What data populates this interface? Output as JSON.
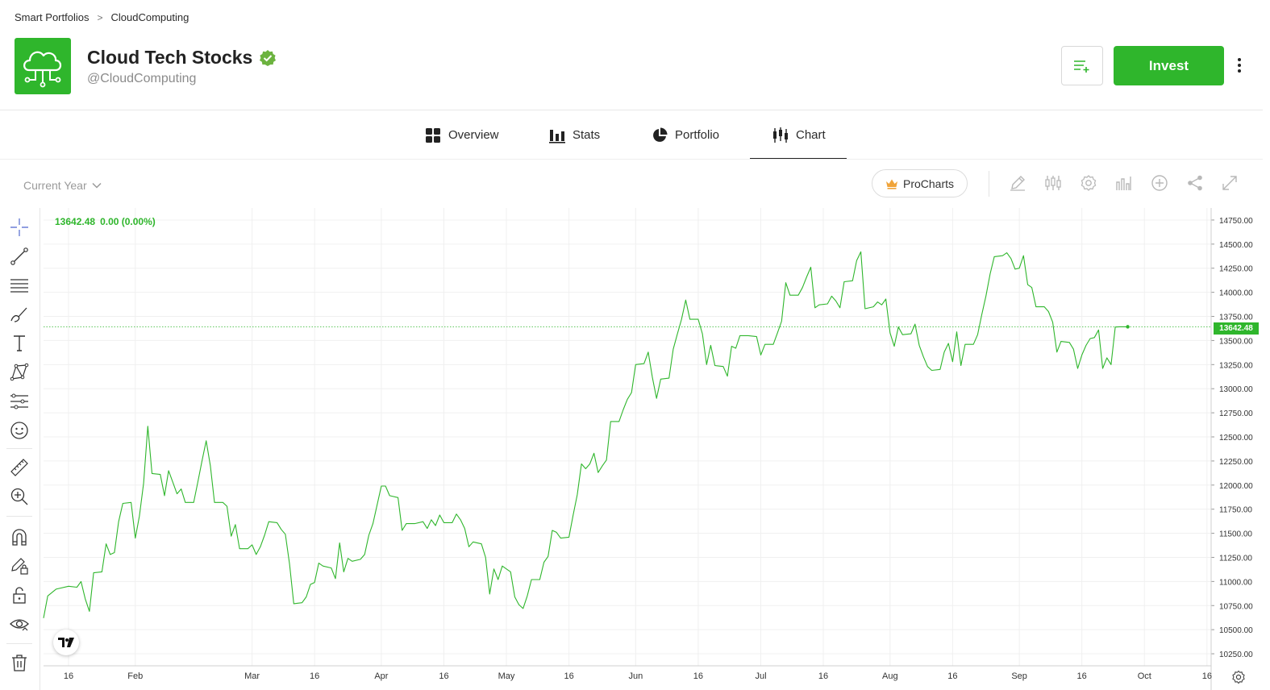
{
  "breadcrumb": {
    "parent": "Smart Portfolios",
    "separator": ">",
    "current": "CloudComputing"
  },
  "header": {
    "title": "Cloud Tech Stocks",
    "handle": "@CloudComputing",
    "invest_label": "Invest",
    "brand_color": "#2fb62c"
  },
  "tabs": [
    {
      "label": "Overview",
      "icon": "grid-icon"
    },
    {
      "label": "Stats",
      "icon": "bar-chart-icon"
    },
    {
      "label": "Portfolio",
      "icon": "pie-chart-icon"
    },
    {
      "label": "Chart",
      "icon": "candlestick-icon",
      "active": true
    }
  ],
  "toolbar": {
    "range_label": "Current Year",
    "procharts_label": "ProCharts",
    "icons": [
      "pencil-icon",
      "candles-icon",
      "settings-icon",
      "indicators-icon",
      "add-icon",
      "share-icon",
      "fullscreen-icon"
    ]
  },
  "left_tools": [
    "crosshair-icon",
    "trendline-icon",
    "horizontal-lines-icon",
    "brush-icon",
    "text-icon",
    "pattern-icon",
    "fib-icon",
    "emoji-icon",
    "ruler-icon",
    "zoom-in-icon",
    "magnet-icon",
    "lock-drawing-icon",
    "unlock-icon",
    "eye-icon",
    "trash-icon"
  ],
  "legend": {
    "last": "13642.48",
    "change": "0.00 (0.00%)"
  },
  "last_price_badge": "13642.48",
  "chart_data": {
    "type": "line",
    "title": "",
    "xlabel": "",
    "ylabel": "",
    "ylim": [
      10125,
      14875
    ],
    "y_ticks": [
      "14750.00",
      "14500.00",
      "14250.00",
      "14000.00",
      "13750.00",
      "13500.00",
      "13250.00",
      "13000.00",
      "12750.00",
      "12500.00",
      "12250.00",
      "12000.00",
      "11750.00",
      "11500.00",
      "11250.00",
      "11000.00",
      "10750.00",
      "10500.00",
      "10250.00"
    ],
    "x_ticks": [
      {
        "label": "16",
        "x": "2023-01-16"
      },
      {
        "label": "Feb",
        "x": "2023-02-01"
      },
      {
        "label": "Mar",
        "x": "2023-03-01"
      },
      {
        "label": "16",
        "x": "2023-03-16"
      },
      {
        "label": "Apr",
        "x": "2023-04-01"
      },
      {
        "label": "16",
        "x": "2023-04-16"
      },
      {
        "label": "May",
        "x": "2023-05-01"
      },
      {
        "label": "16",
        "x": "2023-05-16"
      },
      {
        "label": "Jun",
        "x": "2023-06-01"
      },
      {
        "label": "16",
        "x": "2023-06-16"
      },
      {
        "label": "Jul",
        "x": "2023-07-01"
      },
      {
        "label": "16",
        "x": "2023-07-16"
      },
      {
        "label": "Aug",
        "x": "2023-08-01"
      },
      {
        "label": "16",
        "x": "2023-08-16"
      },
      {
        "label": "Sep",
        "x": "2023-09-01"
      },
      {
        "label": "16",
        "x": "2023-09-16"
      },
      {
        "label": "Oct",
        "x": "2023-10-01"
      },
      {
        "label": "16",
        "x": "2023-10-16"
      }
    ],
    "x_start": "2023-01-10",
    "x_end": "2023-10-17",
    "series": [
      {
        "color": "#2fb62c",
        "points": [
          [
            "2023-01-10",
            10620
          ],
          [
            "2023-01-11",
            10850
          ],
          [
            "2023-01-13",
            10920
          ],
          [
            "2023-01-16",
            10950
          ],
          [
            "2023-01-18",
            10940
          ],
          [
            "2023-01-19",
            11000
          ],
          [
            "2023-01-20",
            10820
          ],
          [
            "2023-01-21",
            10690
          ],
          [
            "2023-01-22",
            11090
          ],
          [
            "2023-01-24",
            11100
          ],
          [
            "2023-01-25",
            11390
          ],
          [
            "2023-01-26",
            11280
          ],
          [
            "2023-01-27",
            11300
          ],
          [
            "2023-01-28",
            11620
          ],
          [
            "2023-01-29",
            11810
          ],
          [
            "2023-01-31",
            11820
          ],
          [
            "2023-02-01",
            11450
          ],
          [
            "2023-02-02",
            11680
          ],
          [
            "2023-02-03",
            12020
          ],
          [
            "2023-02-04",
            12610
          ],
          [
            "2023-02-05",
            12120
          ],
          [
            "2023-02-07",
            12110
          ],
          [
            "2023-02-08",
            11890
          ],
          [
            "2023-02-09",
            12150
          ],
          [
            "2023-02-10",
            12030
          ],
          [
            "2023-02-11",
            11910
          ],
          [
            "2023-02-12",
            11960
          ],
          [
            "2023-02-13",
            11820
          ],
          [
            "2023-02-15",
            11820
          ],
          [
            "2023-02-16",
            12030
          ],
          [
            "2023-02-17",
            12250
          ],
          [
            "2023-02-18",
            12460
          ],
          [
            "2023-02-19",
            12200
          ],
          [
            "2023-02-20",
            11820
          ],
          [
            "2023-02-22",
            11820
          ],
          [
            "2023-02-23",
            11780
          ],
          [
            "2023-02-24",
            11470
          ],
          [
            "2023-02-25",
            11590
          ],
          [
            "2023-02-26",
            11340
          ],
          [
            "2023-02-28",
            11340
          ],
          [
            "2023-03-01",
            11380
          ],
          [
            "2023-03-02",
            11280
          ],
          [
            "2023-03-03",
            11360
          ],
          [
            "2023-03-04",
            11480
          ],
          [
            "2023-03-05",
            11620
          ],
          [
            "2023-03-07",
            11610
          ],
          [
            "2023-03-08",
            11540
          ],
          [
            "2023-03-09",
            11490
          ],
          [
            "2023-03-10",
            11180
          ],
          [
            "2023-03-11",
            10770
          ],
          [
            "2023-03-13",
            10780
          ],
          [
            "2023-03-14",
            10840
          ],
          [
            "2023-03-15",
            10970
          ],
          [
            "2023-03-16",
            10990
          ],
          [
            "2023-03-17",
            11190
          ],
          [
            "2023-03-18",
            11160
          ],
          [
            "2023-03-20",
            11140
          ],
          [
            "2023-03-21",
            11030
          ],
          [
            "2023-03-22",
            11400
          ],
          [
            "2023-03-23",
            11100
          ],
          [
            "2023-03-24",
            11240
          ],
          [
            "2023-03-25",
            11210
          ],
          [
            "2023-03-27",
            11230
          ],
          [
            "2023-03-28",
            11280
          ],
          [
            "2023-03-29",
            11480
          ],
          [
            "2023-03-30",
            11600
          ],
          [
            "2023-04-01",
            11990
          ],
          [
            "2023-04-02",
            11990
          ],
          [
            "2023-04-03",
            11890
          ],
          [
            "2023-04-05",
            11870
          ],
          [
            "2023-04-06",
            11530
          ],
          [
            "2023-04-07",
            11600
          ],
          [
            "2023-04-09",
            11600
          ],
          [
            "2023-04-11",
            11620
          ],
          [
            "2023-04-12",
            11550
          ],
          [
            "2023-04-13",
            11640
          ],
          [
            "2023-04-14",
            11580
          ],
          [
            "2023-04-15",
            11690
          ],
          [
            "2023-04-16",
            11610
          ],
          [
            "2023-04-18",
            11610
          ],
          [
            "2023-04-19",
            11700
          ],
          [
            "2023-04-20",
            11640
          ],
          [
            "2023-04-21",
            11550
          ],
          [
            "2023-04-22",
            11360
          ],
          [
            "2023-04-23",
            11410
          ],
          [
            "2023-04-25",
            11390
          ],
          [
            "2023-04-26",
            11250
          ],
          [
            "2023-04-27",
            10870
          ],
          [
            "2023-04-28",
            11130
          ],
          [
            "2023-04-29",
            11020
          ],
          [
            "2023-04-30",
            11160
          ],
          [
            "2023-05-01",
            11130
          ],
          [
            "2023-05-02",
            11100
          ],
          [
            "2023-05-03",
            10840
          ],
          [
            "2023-05-04",
            10760
          ],
          [
            "2023-05-05",
            10720
          ],
          [
            "2023-05-06",
            10850
          ],
          [
            "2023-05-07",
            11020
          ],
          [
            "2023-05-09",
            11020
          ],
          [
            "2023-05-10",
            11200
          ],
          [
            "2023-05-11",
            11260
          ],
          [
            "2023-05-12",
            11530
          ],
          [
            "2023-05-13",
            11510
          ],
          [
            "2023-05-14",
            11450
          ],
          [
            "2023-05-16",
            11460
          ],
          [
            "2023-05-17",
            11690
          ],
          [
            "2023-05-18",
            11900
          ],
          [
            "2023-05-19",
            12220
          ],
          [
            "2023-05-20",
            12170
          ],
          [
            "2023-05-21",
            12220
          ],
          [
            "2023-05-22",
            12330
          ],
          [
            "2023-05-23",
            12130
          ],
          [
            "2023-05-24",
            12200
          ],
          [
            "2023-05-25",
            12260
          ],
          [
            "2023-05-26",
            12660
          ],
          [
            "2023-05-28",
            12660
          ],
          [
            "2023-05-29",
            12780
          ],
          [
            "2023-05-30",
            12890
          ],
          [
            "2023-05-31",
            12960
          ],
          [
            "2023-06-01",
            13250
          ],
          [
            "2023-06-03",
            13260
          ],
          [
            "2023-06-04",
            13380
          ],
          [
            "2023-06-05",
            13120
          ],
          [
            "2023-06-06",
            12900
          ],
          [
            "2023-06-07",
            13100
          ],
          [
            "2023-06-09",
            13110
          ],
          [
            "2023-06-10",
            13410
          ],
          [
            "2023-06-11",
            13570
          ],
          [
            "2023-06-12",
            13720
          ],
          [
            "2023-06-13",
            13920
          ],
          [
            "2023-06-14",
            13720
          ],
          [
            "2023-06-16",
            13720
          ],
          [
            "2023-06-17",
            13570
          ],
          [
            "2023-06-18",
            13250
          ],
          [
            "2023-06-19",
            13450
          ],
          [
            "2023-06-20",
            13240
          ],
          [
            "2023-06-22",
            13230
          ],
          [
            "2023-06-23",
            13130
          ],
          [
            "2023-06-24",
            13440
          ],
          [
            "2023-06-25",
            13420
          ],
          [
            "2023-06-26",
            13550
          ],
          [
            "2023-06-28",
            13550
          ],
          [
            "2023-06-30",
            13540
          ],
          [
            "2023-07-01",
            13350
          ],
          [
            "2023-07-02",
            13460
          ],
          [
            "2023-07-04",
            13460
          ],
          [
            "2023-07-05",
            13580
          ],
          [
            "2023-07-06",
            13700
          ],
          [
            "2023-07-07",
            14100
          ],
          [
            "2023-07-08",
            13970
          ],
          [
            "2023-07-10",
            13970
          ],
          [
            "2023-07-11",
            14050
          ],
          [
            "2023-07-12",
            14160
          ],
          [
            "2023-07-13",
            14260
          ],
          [
            "2023-07-14",
            13840
          ],
          [
            "2023-07-15",
            13870
          ],
          [
            "2023-07-17",
            13880
          ],
          [
            "2023-07-18",
            13960
          ],
          [
            "2023-07-19",
            13910
          ],
          [
            "2023-07-20",
            13840
          ],
          [
            "2023-07-21",
            14110
          ],
          [
            "2023-07-23",
            14120
          ],
          [
            "2023-07-24",
            14330
          ],
          [
            "2023-07-25",
            14420
          ],
          [
            "2023-07-26",
            13830
          ],
          [
            "2023-07-28",
            13850
          ],
          [
            "2023-07-29",
            13900
          ],
          [
            "2023-07-30",
            13870
          ],
          [
            "2023-07-31",
            13930
          ],
          [
            "2023-08-01",
            13580
          ],
          [
            "2023-08-02",
            13440
          ],
          [
            "2023-08-03",
            13640
          ],
          [
            "2023-08-04",
            13560
          ],
          [
            "2023-08-06",
            13570
          ],
          [
            "2023-08-07",
            13670
          ],
          [
            "2023-08-08",
            13450
          ],
          [
            "2023-08-09",
            13330
          ],
          [
            "2023-08-10",
            13230
          ],
          [
            "2023-08-11",
            13190
          ],
          [
            "2023-08-13",
            13200
          ],
          [
            "2023-08-14",
            13380
          ],
          [
            "2023-08-15",
            13470
          ],
          [
            "2023-08-16",
            13280
          ],
          [
            "2023-08-17",
            13590
          ],
          [
            "2023-08-18",
            13240
          ],
          [
            "2023-08-19",
            13460
          ],
          [
            "2023-08-21",
            13460
          ],
          [
            "2023-08-22",
            13560
          ],
          [
            "2023-08-23",
            13770
          ],
          [
            "2023-08-24",
            13960
          ],
          [
            "2023-08-25",
            14190
          ],
          [
            "2023-08-26",
            14370
          ],
          [
            "2023-08-28",
            14380
          ],
          [
            "2023-08-29",
            14410
          ],
          [
            "2023-08-30",
            14350
          ],
          [
            "2023-08-31",
            14240
          ],
          [
            "2023-09-01",
            14250
          ],
          [
            "2023-09-02",
            14380
          ],
          [
            "2023-09-03",
            14080
          ],
          [
            "2023-09-04",
            14050
          ],
          [
            "2023-09-05",
            13850
          ],
          [
            "2023-09-07",
            13850
          ],
          [
            "2023-09-08",
            13800
          ],
          [
            "2023-09-09",
            13690
          ],
          [
            "2023-09-10",
            13380
          ],
          [
            "2023-09-11",
            13490
          ],
          [
            "2023-09-13",
            13480
          ],
          [
            "2023-09-14",
            13410
          ],
          [
            "2023-09-15",
            13210
          ],
          [
            "2023-09-16",
            13350
          ],
          [
            "2023-09-17",
            13450
          ],
          [
            "2023-09-18",
            13520
          ],
          [
            "2023-09-19",
            13530
          ],
          [
            "2023-09-20",
            13610
          ],
          [
            "2023-09-21",
            13210
          ],
          [
            "2023-09-22",
            13320
          ],
          [
            "2023-09-23",
            13250
          ],
          [
            "2023-09-24",
            13640
          ],
          [
            "2023-09-25",
            13642.48
          ],
          [
            "2023-09-26",
            13642.48
          ],
          [
            "2023-09-27",
            13642.48
          ]
        ]
      }
    ],
    "last_value": 13642.48,
    "grid": true
  }
}
